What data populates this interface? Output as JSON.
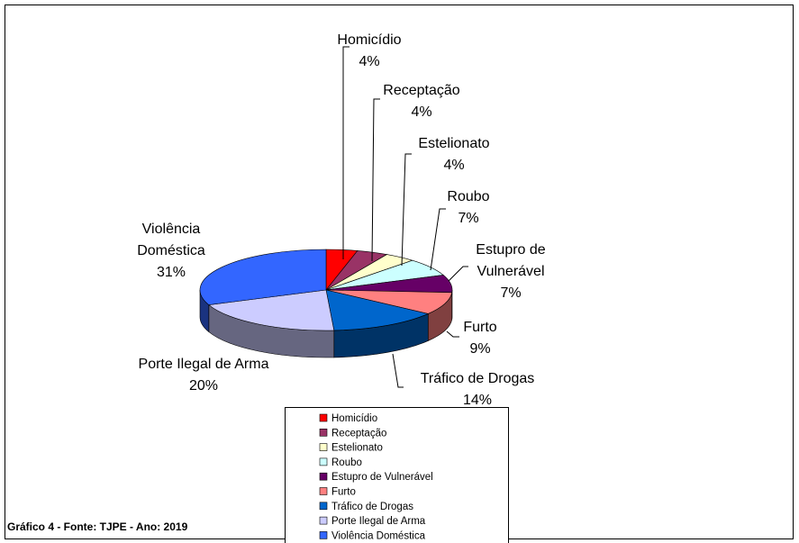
{
  "chart_data": {
    "type": "pie3d",
    "caption": "Gráfico 4 - Fonte: TJPE - Ano: 2019",
    "categories": [
      "Homicídio",
      "Receptação",
      "Estelionato",
      "Roubo",
      "Estupro de Vulnerável",
      "Furto",
      "Tráfico de Drogas",
      "Porte Ilegal de Arma",
      "Violência Doméstica"
    ],
    "values": [
      4,
      4,
      4,
      7,
      7,
      9,
      14,
      20,
      31
    ],
    "value_labels": [
      "4%",
      "4%",
      "4%",
      "7%",
      "7%",
      "9%",
      "14%",
      "20%",
      "31%"
    ],
    "colors": [
      "#ff0000",
      "#993366",
      "#ffffcc",
      "#ccffff",
      "#660066",
      "#ff8080",
      "#0066cc",
      "#ccccff",
      "#3366ff"
    ],
    "legend": "bottom"
  }
}
